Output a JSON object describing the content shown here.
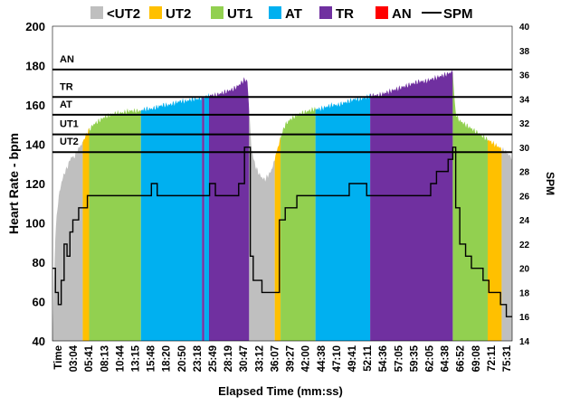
{
  "chart_data": {
    "type": "area",
    "title": "",
    "xlabel": "Elapsed Time (mm:ss)",
    "ylabel": "Heart Rate - bpm",
    "y2label": "SPM",
    "ylim": [
      40,
      200
    ],
    "y2lim": [
      14,
      40
    ],
    "yticks": [
      "200",
      "180",
      "160",
      "140",
      "120",
      "100",
      "80",
      "60",
      "40"
    ],
    "y2ticks": [
      "40",
      "38",
      "36",
      "34",
      "32",
      "30",
      "28",
      "26",
      "24",
      "22",
      "20",
      "18",
      "16",
      "14"
    ],
    "x_tick_labels": [
      "Time",
      "03:04",
      "05:41",
      "08:13",
      "10:44",
      "13:15",
      "15:48",
      "18:20",
      "20:50",
      "23:18",
      "25:49",
      "28:19",
      "30:47",
      "33:12",
      "36:07",
      "39:27",
      "42:00",
      "44:38",
      "47:10",
      "49:41",
      "52:11",
      "54:36",
      "57:05",
      "59:35",
      "62:05",
      "64:38",
      "66:52",
      "69:08",
      "72:11",
      "75:31"
    ],
    "legend": [
      {
        "label": "<UT2",
        "color": "#bfbfbf",
        "kind": "area"
      },
      {
        "label": "UT2",
        "color": "#ffc000",
        "kind": "area"
      },
      {
        "label": "UT1",
        "color": "#92d050",
        "kind": "area"
      },
      {
        "label": "AT",
        "color": "#00b0f0",
        "kind": "area"
      },
      {
        "label": "TR",
        "color": "#7030a0",
        "kind": "area"
      },
      {
        "label": "AN",
        "color": "#ff0000",
        "kind": "area"
      },
      {
        "label": "SPM",
        "color": "#000000",
        "kind": "line"
      }
    ],
    "zone_thresholds": [
      {
        "label": "AN",
        "hr": 178
      },
      {
        "label": "TR",
        "hr": 164
      },
      {
        "label": "AT",
        "hr": 155
      },
      {
        "label": "UT1",
        "hr": 145
      },
      {
        "label": "UT2",
        "hr": 136
      }
    ],
    "heart_rate": {
      "x_minutes": [
        0,
        0.5,
        1,
        1.5,
        2,
        2.5,
        3,
        3.3,
        3.6,
        4,
        4.5,
        5,
        5.5,
        6,
        7,
        8,
        9,
        10,
        11,
        12,
        13,
        14,
        15,
        16,
        17,
        18,
        19,
        20,
        21,
        22,
        23,
        24,
        25,
        26,
        27,
        28,
        29,
        30,
        31,
        32,
        33,
        33.5,
        34.2,
        34.6,
        35,
        35.5,
        36,
        36.5,
        37,
        37.5,
        38,
        38.5,
        39,
        39.5,
        40,
        41,
        42,
        43,
        44,
        45,
        46,
        47,
        48,
        49,
        50,
        51,
        52,
        53,
        54,
        55,
        56,
        57,
        58,
        59,
        60,
        61,
        62,
        63,
        64,
        65,
        66,
        67,
        68,
        68.8,
        69.2,
        69.5,
        70,
        71,
        72,
        73,
        74,
        75,
        76,
        77,
        78,
        79
      ],
      "bpm": [
        40,
        95,
        112,
        120,
        125,
        128,
        132,
        134,
        133,
        135,
        138,
        140,
        143,
        146,
        150,
        152,
        154,
        155,
        156,
        156,
        157,
        157,
        157,
        158,
        158,
        159,
        160,
        160,
        161,
        162,
        162,
        163,
        163,
        164,
        165,
        165,
        166,
        167,
        168,
        170,
        173,
        172,
        138,
        132,
        128,
        125,
        123,
        122,
        124,
        126,
        130,
        136,
        141,
        146,
        150,
        153,
        155,
        156,
        157,
        158,
        158,
        159,
        160,
        160,
        161,
        162,
        163,
        163,
        164,
        165,
        165,
        166,
        167,
        168,
        169,
        170,
        171,
        172,
        172,
        173,
        174,
        175,
        176,
        177,
        158,
        154,
        152,
        150,
        148,
        146,
        144,
        142,
        140,
        138,
        136,
        133
      ],
      "zone_segments": [
        {
          "zone": "<UT2",
          "from": 0,
          "to": 5.2
        },
        {
          "zone": "UT2",
          "from": 5.2,
          "to": 6.3
        },
        {
          "zone": "UT1",
          "from": 6.3,
          "to": 15.2
        },
        {
          "zone": "AT",
          "from": 15.2,
          "to": 25.7
        },
        {
          "zone": "TR",
          "from": 25.7,
          "to": 26.1
        },
        {
          "zone": "AT",
          "from": 26.1,
          "to": 26.9
        },
        {
          "zone": "TR",
          "from": 26.9,
          "to": 33.8
        },
        {
          "zone": "<UT2",
          "from": 33.8,
          "to": 38.2
        },
        {
          "zone": "UT2",
          "from": 38.2,
          "to": 39.2
        },
        {
          "zone": "UT1",
          "from": 39.2,
          "to": 45.2
        },
        {
          "zone": "AT",
          "from": 45.2,
          "to": 54.6
        },
        {
          "zone": "TR",
          "from": 54.6,
          "to": 68.8
        },
        {
          "zone": "UT1",
          "from": 68.8,
          "to": 74.8
        },
        {
          "zone": "UT2",
          "from": 74.8,
          "to": 77.2
        },
        {
          "zone": "<UT2",
          "from": 77.2,
          "to": 79
        }
      ]
    },
    "spm": {
      "x_minutes": [
        0,
        0.5,
        1,
        1.5,
        2,
        2.5,
        3,
        3.5,
        4,
        4.5,
        5,
        6,
        7,
        8,
        9,
        10,
        11,
        12,
        13,
        14,
        15,
        16,
        17,
        18,
        19,
        20,
        21,
        22,
        23,
        24,
        25,
        26,
        27,
        28,
        29,
        30,
        31,
        32,
        33,
        33.5,
        34,
        34.5,
        35,
        36,
        37,
        38,
        39,
        40,
        41,
        42,
        43,
        44,
        45,
        46,
        47,
        48,
        49,
        50,
        51,
        52,
        53,
        54,
        55,
        56,
        57,
        58,
        59,
        60,
        61,
        62,
        63,
        64,
        65,
        66,
        67,
        68,
        68.8,
        69.3,
        70,
        71,
        72,
        73,
        74,
        75,
        76,
        77,
        78,
        79
      ],
      "values": [
        20,
        18,
        17,
        19,
        22,
        21,
        23,
        24,
        24,
        25,
        25,
        26,
        26,
        26,
        26,
        26,
        26,
        26,
        26,
        26,
        26,
        26,
        27,
        26,
        26,
        26,
        26,
        26,
        26,
        26,
        26,
        26,
        27,
        26,
        26,
        26,
        26,
        27,
        30,
        30,
        21,
        19,
        19,
        18,
        18,
        18,
        24,
        25,
        25,
        26,
        26,
        26,
        26,
        26,
        26,
        26,
        26,
        26,
        27,
        27,
        27,
        26,
        26,
        26,
        26,
        26,
        26,
        26,
        26,
        26,
        26,
        26,
        27,
        28,
        28,
        29,
        30,
        25,
        22,
        21,
        20,
        20,
        19,
        18,
        18,
        17,
        16,
        16
      ]
    },
    "x_range_minutes": [
      0,
      79
    ]
  }
}
